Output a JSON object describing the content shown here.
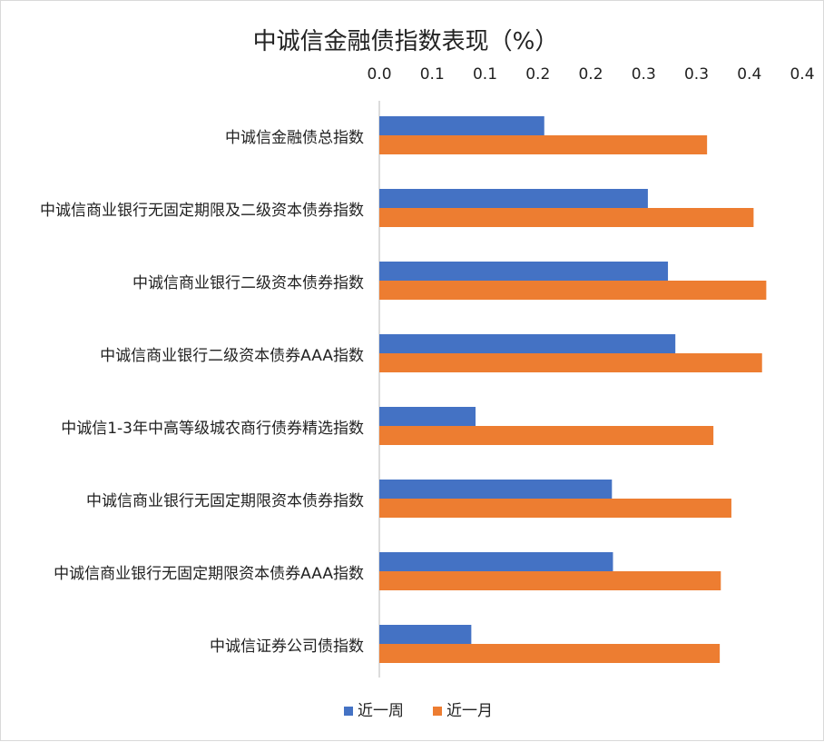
{
  "chart_data": {
    "type": "bar",
    "orientation": "horizontal",
    "title": "中诚信金融债指数表现（%）",
    "x_tick_labels": [
      "0.0",
      "0.1",
      "0.1",
      "0.2",
      "0.2",
      "0.3",
      "0.3",
      "0.4",
      "0.4"
    ],
    "xlim": [
      0,
      0.4
    ],
    "tick_position": "top",
    "grid": false,
    "legend_position": "bottom",
    "categories": [
      "中诚信金融债总指数",
      "中诚信商业银行无固定期限及二级资本债券指数",
      "中诚信商业银行二级资本债券指数",
      "中诚信商业银行二级资本债券AAA指数",
      "中诚信1-3年中高等级城农商行债券精选指数",
      "中诚信商业银行无固定期限资本债券指数",
      "中诚信商业银行无固定期限资本债券AAA指数",
      "中诚信证券公司债指数"
    ],
    "series": [
      {
        "name": "近一周",
        "color": "#4472C4",
        "values": [
          0.156,
          0.254,
          0.273,
          0.28,
          0.091,
          0.22,
          0.221,
          0.087
        ]
      },
      {
        "name": "近一月",
        "color": "#ED7D31",
        "values": [
          0.31,
          0.354,
          0.366,
          0.362,
          0.316,
          0.333,
          0.323,
          0.322
        ]
      }
    ]
  }
}
